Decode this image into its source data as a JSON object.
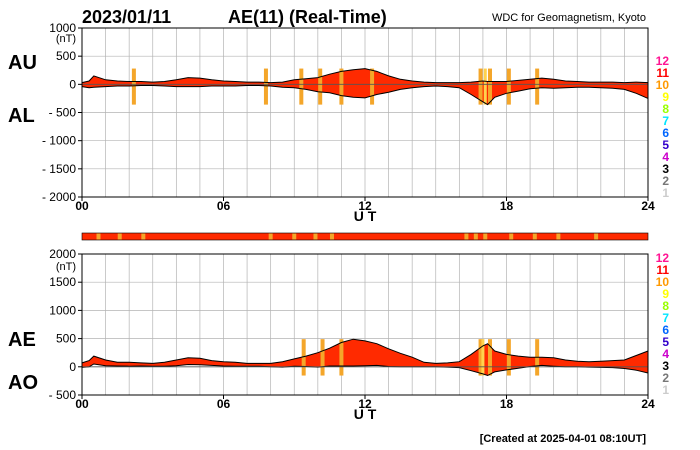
{
  "header": {
    "date": "2023/01/11",
    "title": "AE(11) (Real-Time)",
    "source": "WDC for Geomagnetism, Kyoto"
  },
  "footer": {
    "created": "[Created at 2025-04-01 08:10UT]"
  },
  "legend": {
    "entries": [
      {
        "label": "12",
        "color": "#ff1493"
      },
      {
        "label": "11",
        "color": "#ff0000"
      },
      {
        "label": "10",
        "color": "#ff9900"
      },
      {
        "label": "9",
        "color": "#ffff00"
      },
      {
        "label": "8",
        "color": "#99ff00"
      },
      {
        "label": "7",
        "color": "#00e5ff"
      },
      {
        "label": "6",
        "color": "#0066ff"
      },
      {
        "label": "5",
        "color": "#3300cc"
      },
      {
        "label": "4",
        "color": "#cc00cc"
      },
      {
        "label": "3",
        "color": "#000000"
      },
      {
        "label": "2",
        "color": "#777777"
      },
      {
        "label": "1",
        "color": "#cccccc"
      }
    ]
  },
  "colors": {
    "fill": "#ff2a00",
    "station_minor": "#f4a62a",
    "grid": "#b3b3b3"
  },
  "chart_data": [
    {
      "type": "area",
      "panel": "AU/AL",
      "series_labels": [
        "AU",
        "AL"
      ],
      "xlabel": "U T",
      "ylabel": "(nT)",
      "ylim": [
        -2000,
        1000
      ],
      "xlim": [
        0,
        24
      ],
      "x_ticks": [
        "00",
        "06",
        "12",
        "18",
        "24"
      ],
      "y_ticks": [
        "1000",
        "500",
        "0",
        "- 500",
        "- 1000",
        "- 1500",
        "- 2000"
      ],
      "y_tick_values": [
        1000,
        500,
        0,
        -500,
        -1000,
        -1500,
        -2000
      ],
      "grid": true,
      "x": [
        0,
        0.3,
        0.5,
        1,
        1.5,
        2,
        2.5,
        3,
        3.5,
        4,
        4.5,
        5,
        5.5,
        6,
        6.5,
        7,
        7.5,
        8,
        8.5,
        9,
        9.5,
        10,
        10.5,
        11,
        11.5,
        12,
        12.5,
        13,
        13.5,
        14,
        14.5,
        15,
        15.5,
        16,
        16.5,
        17,
        17.2,
        17.5,
        18,
        18.5,
        19,
        19.5,
        20,
        20.5,
        21,
        21.5,
        22,
        22.5,
        23,
        23.5,
        24
      ],
      "upper": [
        30,
        60,
        150,
        80,
        60,
        50,
        50,
        40,
        50,
        80,
        120,
        110,
        80,
        60,
        50,
        40,
        40,
        30,
        40,
        80,
        100,
        120,
        180,
        230,
        260,
        280,
        230,
        150,
        90,
        60,
        40,
        30,
        30,
        30,
        40,
        60,
        50,
        50,
        50,
        70,
        90,
        110,
        90,
        60,
        50,
        40,
        40,
        40,
        30,
        40,
        30
      ],
      "lower": [
        -40,
        -60,
        -50,
        -40,
        -30,
        -30,
        -20,
        -20,
        -30,
        -40,
        -40,
        -40,
        -30,
        -30,
        -30,
        -20,
        -20,
        -30,
        -50,
        -60,
        -90,
        -130,
        -150,
        -200,
        -230,
        -240,
        -180,
        -140,
        -90,
        -60,
        -40,
        -30,
        -40,
        -60,
        -180,
        -310,
        -360,
        -230,
        -160,
        -120,
        -80,
        -60,
        -70,
        -60,
        -50,
        -50,
        -60,
        -70,
        -90,
        -160,
        -250
      ]
    },
    {
      "type": "area",
      "panel": "AE/AO",
      "series_labels": [
        "AE",
        "AO"
      ],
      "xlabel": "U T",
      "ylabel": "(nT)",
      "ylim": [
        -500,
        2000
      ],
      "xlim": [
        0,
        24
      ],
      "x_ticks": [
        "00",
        "06",
        "12",
        "18",
        "24"
      ],
      "y_ticks": [
        "2000",
        "1500",
        "1000",
        "500",
        "0",
        "- 500"
      ],
      "y_tick_values": [
        2000,
        1500,
        1000,
        500,
        0,
        -500
      ],
      "grid": true,
      "x": [
        0,
        0.3,
        0.5,
        1,
        1.5,
        2,
        2.5,
        3,
        3.5,
        4,
        4.5,
        5,
        5.5,
        6,
        6.5,
        7,
        7.5,
        8,
        8.5,
        9,
        9.5,
        10,
        10.5,
        11,
        11.5,
        12,
        12.5,
        13,
        13.5,
        14,
        14.5,
        15,
        15.5,
        16,
        16.5,
        17,
        17.2,
        17.5,
        18,
        18.5,
        19,
        19.5,
        20,
        20.5,
        21,
        21.5,
        22,
        22.5,
        23,
        23.5,
        24
      ],
      "upper": [
        70,
        110,
        190,
        120,
        80,
        80,
        70,
        60,
        80,
        120,
        160,
        150,
        110,
        90,
        80,
        60,
        60,
        60,
        90,
        140,
        190,
        250,
        330,
        430,
        490,
        460,
        410,
        320,
        240,
        170,
        80,
        60,
        70,
        90,
        220,
        370,
        410,
        280,
        220,
        190,
        170,
        170,
        160,
        120,
        100,
        90,
        100,
        110,
        120,
        200,
        280
      ],
      "lower": [
        -10,
        0,
        50,
        20,
        15,
        10,
        15,
        10,
        10,
        20,
        40,
        35,
        25,
        15,
        10,
        10,
        10,
        0,
        -5,
        10,
        5,
        -5,
        15,
        15,
        15,
        20,
        25,
        5,
        0,
        0,
        0,
        0,
        -5,
        -15,
        -70,
        -125,
        -155,
        -90,
        -55,
        -25,
        5,
        25,
        10,
        0,
        0,
        -5,
        -10,
        -15,
        -30,
        -60,
        -110
      ]
    },
    {
      "type": "table",
      "panel": "stations",
      "series_labels": [
        "11",
        "10"
      ],
      "xlim": [
        0,
        24
      ],
      "value": 11,
      "minor_value": 10,
      "minor_x": [
        0.7,
        1.6,
        2.6,
        8.0,
        9.0,
        9.9,
        10.6,
        16.3,
        16.7,
        17.1,
        18.2,
        19.2,
        20.2,
        21.8
      ]
    }
  ],
  "panel_marks": {
    "top": {
      "x": [
        2.2,
        7.8,
        9.3,
        10.1,
        11.0,
        12.3,
        16.9,
        17.3,
        18.1,
        19.3
      ],
      "x2": [
        17.1
      ]
    },
    "bottom": {
      "x": [
        9.4,
        10.2,
        11.0,
        16.9,
        17.3,
        18.1,
        19.3
      ],
      "x2": [
        17.0
      ]
    }
  }
}
